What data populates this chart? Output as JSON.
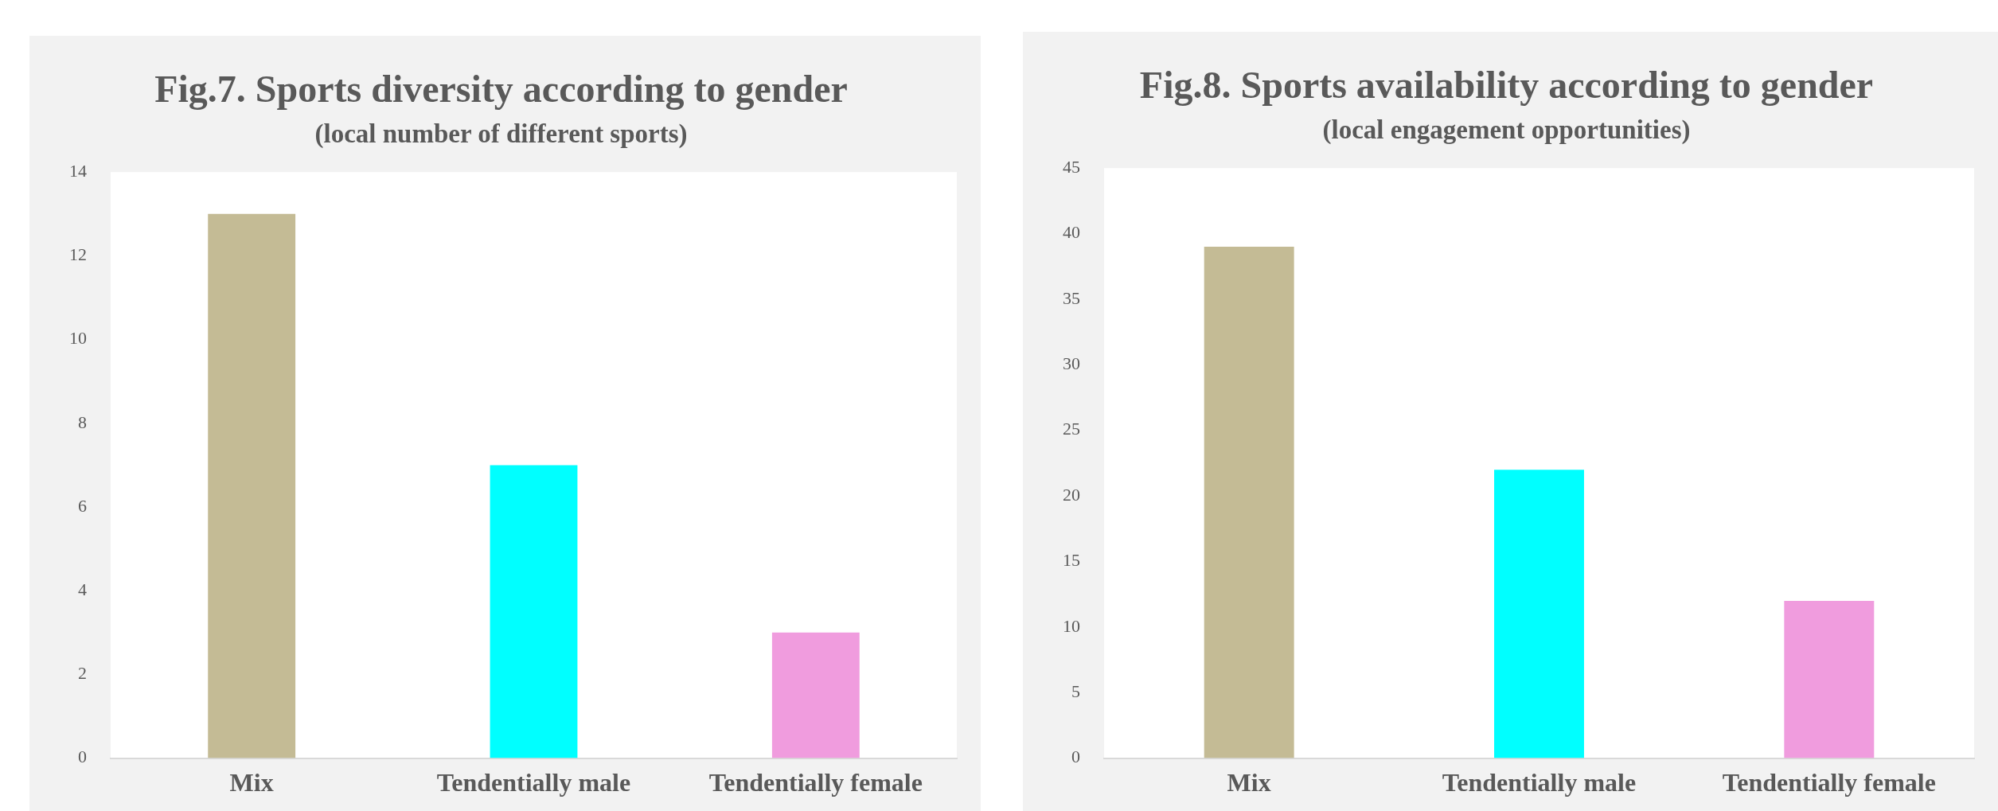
{
  "chart_data": [
    {
      "type": "bar",
      "title": "Fig.7. Sports diversity according to gender",
      "subtitle": "(local number of different sports)",
      "categories": [
        "Mix",
        "Tendentially male",
        "Tendentially female"
      ],
      "values": [
        13,
        7,
        3
      ],
      "colors": [
        "#c4bb95",
        "#00ffff",
        "#f09cde"
      ],
      "ylim": [
        0,
        14
      ],
      "yticks": [
        0,
        2,
        4,
        6,
        8,
        10,
        12,
        14
      ]
    },
    {
      "type": "bar",
      "title": "Fig.8. Sports availability according to gender",
      "subtitle": "(local engagement opportunities)",
      "categories": [
        "Mix",
        "Tendentially male",
        "Tendentially female"
      ],
      "values": [
        39,
        22,
        12
      ],
      "colors": [
        "#c4bb95",
        "#00ffff",
        "#f09cde"
      ],
      "ylim": [
        0,
        45
      ],
      "yticks": [
        0,
        5,
        10,
        15,
        20,
        25,
        30,
        35,
        40,
        45
      ]
    }
  ]
}
